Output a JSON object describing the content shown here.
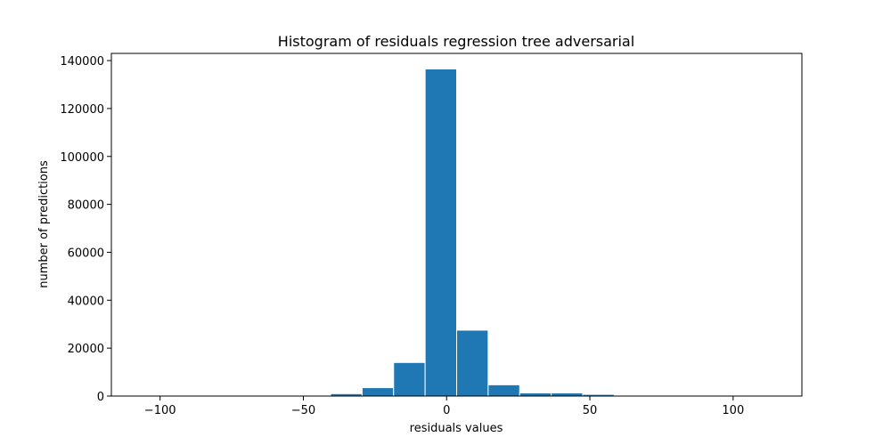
{
  "chart_data": {
    "type": "bar",
    "title": "Histogram of residuals regression tree adversarial",
    "xlabel": "residuals values",
    "ylabel": "number of predictions",
    "xlim": [
      -117,
      124
    ],
    "ylim": [
      0,
      143000
    ],
    "xticks": [
      -100,
      -50,
      0,
      50,
      100
    ],
    "xtick_labels": [
      "−100",
      "−50",
      "0",
      "50",
      "100"
    ],
    "yticks": [
      0,
      20000,
      40000,
      60000,
      80000,
      100000,
      120000,
      140000
    ],
    "ytick_labels": [
      "0",
      "20000",
      "40000",
      "60000",
      "80000",
      "100000",
      "120000",
      "140000"
    ],
    "bar_color": "#1f77b4",
    "grid": false,
    "bins": [
      {
        "x0": -106.5,
        "x1": -95.5,
        "count": 0
      },
      {
        "x0": -95.5,
        "x1": -84.5,
        "count": 0
      },
      {
        "x0": -84.5,
        "x1": -73.5,
        "count": 0
      },
      {
        "x0": -73.5,
        "x1": -62.5,
        "count": 0
      },
      {
        "x0": -62.5,
        "x1": -51.5,
        "count": 50
      },
      {
        "x0": -51.5,
        "x1": -40.5,
        "count": 300
      },
      {
        "x0": -40.5,
        "x1": -29.5,
        "count": 1000
      },
      {
        "x0": -29.5,
        "x1": -18.5,
        "count": 3500
      },
      {
        "x0": -18.5,
        "x1": -7.5,
        "count": 14000
      },
      {
        "x0": -7.5,
        "x1": 3.5,
        "count": 136500
      },
      {
        "x0": 3.5,
        "x1": 14.5,
        "count": 27500
      },
      {
        "x0": 14.5,
        "x1": 25.5,
        "count": 4700
      },
      {
        "x0": 25.5,
        "x1": 36.5,
        "count": 1300
      },
      {
        "x0": 36.5,
        "x1": 47.5,
        "count": 1300
      },
      {
        "x0": 47.5,
        "x1": 58.5,
        "count": 700
      },
      {
        "x0": 58.5,
        "x1": 69.5,
        "count": 50
      },
      {
        "x0": 69.5,
        "x1": 80.5,
        "count": 0
      },
      {
        "x0": 80.5,
        "x1": 91.5,
        "count": 0
      },
      {
        "x0": 91.5,
        "x1": 102.5,
        "count": 0
      },
      {
        "x0": 102.5,
        "x1": 113.5,
        "count": 0
      }
    ]
  }
}
